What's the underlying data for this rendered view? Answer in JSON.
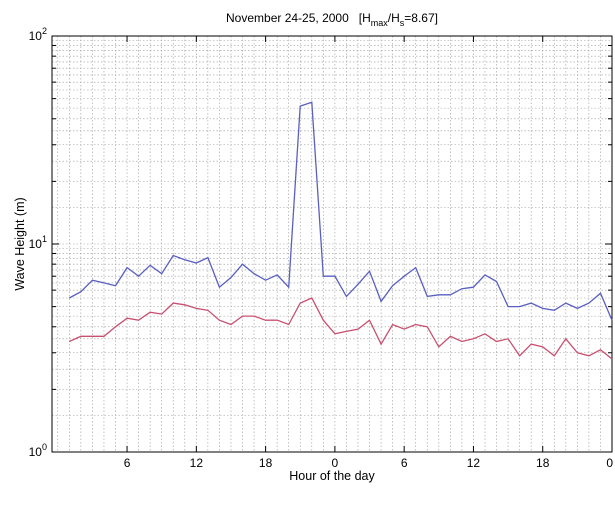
{
  "chart_data": {
    "type": "line",
    "title": {
      "main": "November 24-25, 2000",
      "ratio_prefix": "[H",
      "ratio_sub1": "max",
      "ratio_mid": "/H",
      "ratio_sub2": "s",
      "ratio_suffix": "=8.67]"
    },
    "xlabel": "Hour of the day",
    "ylabel": "Wave Height    (m)",
    "y_scale": "log",
    "ylim": [
      1,
      100
    ],
    "xlim": [
      -0.5,
      48
    ],
    "y_ticks": [
      {
        "value": 1,
        "base": "10",
        "exp": "0"
      },
      {
        "value": 10,
        "base": "10",
        "exp": "1"
      },
      {
        "value": 100,
        "base": "10",
        "exp": "2"
      }
    ],
    "x_ticks": [
      {
        "value": 6,
        "label": "6"
      },
      {
        "value": 12,
        "label": "12"
      },
      {
        "value": 18,
        "label": "18"
      },
      {
        "value": 24,
        "label": "0"
      },
      {
        "value": 30,
        "label": "6"
      },
      {
        "value": 36,
        "label": "12"
      },
      {
        "value": 42,
        "label": "18"
      },
      {
        "value": 48,
        "label": "0"
      }
    ],
    "grid": true,
    "series": [
      {
        "color": "#5a5fc0",
        "x": [
          1,
          2,
          3,
          4,
          5,
          6,
          7,
          8,
          9,
          10,
          11,
          12,
          13,
          14,
          15,
          16,
          17,
          18,
          19,
          20,
          21,
          22,
          23,
          24,
          25,
          26,
          27,
          28,
          29,
          30,
          31,
          32,
          33,
          34,
          35,
          36,
          37,
          38,
          39,
          40,
          41,
          42,
          43,
          44,
          45,
          46,
          47,
          48
        ],
        "values": [
          5.5,
          5.9,
          6.7,
          6.5,
          6.3,
          7.7,
          7.0,
          7.9,
          7.2,
          8.8,
          8.4,
          8.1,
          8.6,
          6.2,
          6.9,
          8.0,
          7.2,
          6.7,
          7.1,
          6.2,
          46.0,
          48.0,
          7.0,
          7.0,
          5.6,
          6.4,
          7.4,
          5.3,
          6.3,
          7.0,
          7.7,
          5.6,
          5.7,
          5.7,
          6.1,
          6.2,
          7.1,
          6.6,
          5.0,
          5.0,
          5.2,
          4.9,
          4.8,
          5.2,
          4.9,
          5.2,
          5.8,
          4.3
        ]
      },
      {
        "color": "#c8506f",
        "x": [
          1,
          2,
          3,
          4,
          5,
          6,
          7,
          8,
          9,
          10,
          11,
          12,
          13,
          14,
          15,
          16,
          17,
          18,
          19,
          20,
          21,
          22,
          23,
          24,
          25,
          26,
          27,
          28,
          29,
          30,
          31,
          32,
          33,
          34,
          35,
          36,
          37,
          38,
          39,
          40,
          41,
          42,
          43,
          44,
          45,
          46,
          47,
          48
        ],
        "values": [
          3.4,
          3.6,
          3.6,
          3.6,
          4.0,
          4.4,
          4.3,
          4.7,
          4.6,
          5.2,
          5.1,
          4.9,
          4.8,
          4.3,
          4.1,
          4.5,
          4.5,
          4.3,
          4.3,
          4.1,
          5.2,
          5.5,
          4.3,
          3.7,
          3.8,
          3.9,
          4.3,
          3.3,
          4.1,
          3.9,
          4.1,
          4.0,
          3.2,
          3.6,
          3.4,
          3.5,
          3.7,
          3.4,
          3.5,
          2.9,
          3.3,
          3.2,
          2.9,
          3.5,
          3.0,
          2.9,
          3.1,
          2.8
        ]
      }
    ]
  }
}
